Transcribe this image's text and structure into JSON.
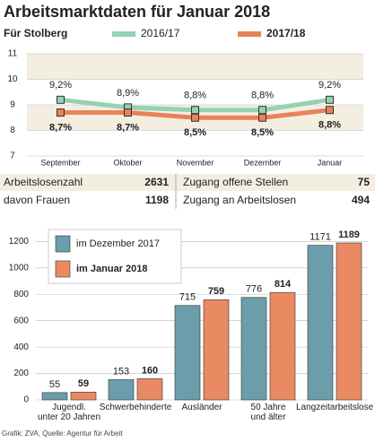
{
  "title": "Arbeitsmarktdaten für Januar 2018",
  "subtitle": "Für Stolberg",
  "chart_data": [
    {
      "type": "line",
      "categories": [
        "September",
        "Oktober",
        "November",
        "Dezember",
        "Januar"
      ],
      "series": [
        {
          "name": "2016/17",
          "color": "#94d1b5",
          "values": [
            9.2,
            8.9,
            8.8,
            8.8,
            9.2
          ],
          "value_labels": [
            "9,2%",
            "8,9%",
            "8,8%",
            "8,8%",
            "9,2%"
          ]
        },
        {
          "name": "2017/18",
          "color": "#e8825a",
          "values": [
            8.7,
            8.7,
            8.5,
            8.5,
            8.8
          ],
          "value_labels": [
            "8,7%",
            "8,7%",
            "8,5%",
            "8,5%",
            "8,8%"
          ]
        }
      ],
      "ylim": [
        7,
        11
      ],
      "yticks": [
        7,
        8,
        9,
        10,
        11
      ],
      "grid": true
    },
    {
      "type": "bar",
      "categories": [
        "Jugendl.\nunter 20 Jahren",
        "Schwerbehinderte",
        "Ausländer",
        "50 Jahre\nund älter",
        "Langzeitarbeitslose"
      ],
      "series": [
        {
          "name": "im Dezember 2017",
          "color": "#6b9dab",
          "values": [
            55,
            153,
            715,
            776,
            1171
          ]
        },
        {
          "name": "im Januar 2018",
          "color": "#e98a63",
          "values": [
            59,
            160,
            759,
            814,
            1189
          ]
        }
      ],
      "ylim": [
        0,
        1250
      ],
      "yticks": [
        0,
        200,
        400,
        600,
        800,
        1000,
        1200
      ],
      "grid": true
    }
  ],
  "stats": [
    [
      {
        "label": "Arbeitslosenzahl",
        "value": 2631
      },
      {
        "label": "Zugang offene Stellen",
        "value": 75
      }
    ],
    [
      {
        "label": "davon Frauen",
        "value": 1198
      },
      {
        "label": "Zugang an Arbeitslosen",
        "value": 494
      }
    ]
  ],
  "source": "Grafik: ZVA, Quelle: Agentur für Arbeit"
}
